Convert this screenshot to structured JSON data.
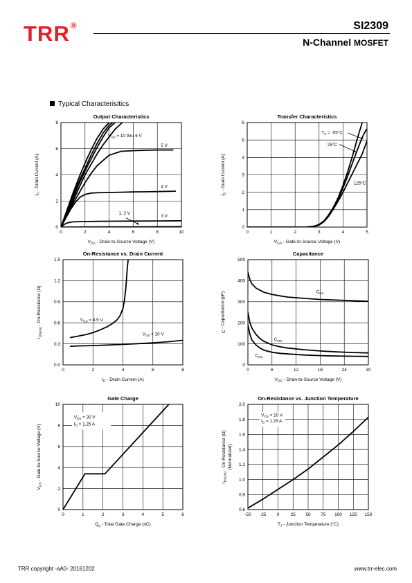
{
  "header": {
    "logo": "TRR",
    "registered": "®",
    "part_number": "SI2309",
    "desc_main": "N-Channel",
    "desc_small": "MOSFET"
  },
  "section_title": "Typical  Characterisitics",
  "footer": {
    "left": "TRR copyright -aA0- 20161202",
    "right": "www.trr-elec.com"
  },
  "chart_data": [
    {
      "id": "output",
      "type": "line",
      "title": "Output Characteristics",
      "xlabel_main": "V",
      "xlabel_sub": "DS",
      "xlabel_rest": " -  Drain-to-Source Voltage (V)",
      "ylabel_main": "I",
      "ylabel_sub": "D",
      "ylabel_rest": " -  Drain Current (A)",
      "xlim": [
        0,
        10
      ],
      "ylim": [
        0,
        8
      ],
      "xticks": [
        0,
        2,
        4,
        6,
        8,
        10
      ],
      "yticks": [
        0,
        2,
        4,
        6,
        8
      ],
      "tick_labels_x": [
        "0",
        "2",
        "4",
        "6",
        "8",
        "10"
      ],
      "tick_labels_y": [
        "0",
        "2",
        "4",
        "6",
        "8"
      ],
      "grid": true,
      "series": [
        {
          "x": [
            0,
            0.5,
            1,
            1.5,
            2,
            2.5,
            3,
            3.5,
            4.0
          ],
          "y": [
            0,
            1.3,
            2.6,
            3.8,
            4.9,
            5.9,
            6.8,
            7.5,
            8.0
          ]
        },
        {
          "x": [
            0,
            0.5,
            1,
            1.5,
            2,
            2.5,
            3,
            3.5,
            4.0,
            4.3
          ],
          "y": [
            0,
            1.2,
            2.4,
            3.5,
            4.5,
            5.5,
            6.4,
            7.2,
            7.8,
            8.0
          ]
        },
        {
          "x": [
            0,
            0.5,
            1,
            1.5,
            2,
            2.5,
            3,
            3.5,
            4.0,
            4.5
          ],
          "y": [
            0,
            1.1,
            2.2,
            3.3,
            4.3,
            5.2,
            6.1,
            6.9,
            7.6,
            8.0
          ]
        },
        {
          "x": [
            0,
            0.5,
            1,
            1.5,
            2,
            2.5,
            3,
            3.5,
            4.0,
            4.5,
            5.1
          ],
          "y": [
            0,
            1.0,
            2.0,
            3.0,
            4.0,
            4.8,
            5.6,
            6.3,
            6.9,
            7.5,
            8.0
          ]
        },
        {
          "x": [
            0,
            0.5,
            1,
            1.5,
            2,
            2.5,
            3,
            4,
            5,
            6,
            7,
            8,
            9.3
          ],
          "y": [
            0,
            0.9,
            1.8,
            2.6,
            3.4,
            4.1,
            4.7,
            5.5,
            5.8,
            5.85,
            5.88,
            5.9,
            5.9
          ]
        },
        {
          "x": [
            0,
            0.4,
            0.8,
            1.2,
            1.6,
            2.0,
            2.5,
            3,
            4,
            5,
            6,
            7,
            8,
            9.5
          ],
          "y": [
            0,
            0.7,
            1.35,
            1.9,
            2.3,
            2.5,
            2.6,
            2.63,
            2.65,
            2.67,
            2.69,
            2.7,
            2.72,
            2.75
          ]
        },
        {
          "x": [
            0,
            0.3,
            0.6,
            1.0,
            1.5,
            2,
            3,
            4,
            6,
            8,
            10
          ],
          "y": [
            0,
            0.22,
            0.34,
            0.4,
            0.42,
            0.43,
            0.44,
            0.45,
            0.46,
            0.47,
            0.48
          ]
        },
        {
          "x": [
            0,
            2,
            4,
            6,
            8,
            10
          ],
          "y": [
            0,
            0.01,
            0.02,
            0.02,
            0.03,
            0.03
          ]
        }
      ],
      "annotations": [
        {
          "x": 3.9,
          "y": 6.9,
          "parts": [
            [
              "V",
              ""
            ],
            [
              "GS",
              "sub"
            ],
            [
              " = 10 thru 6 V",
              ""
            ]
          ]
        },
        {
          "x": 8.3,
          "y": 6.15,
          "parts": [
            [
              "5 V",
              ""
            ]
          ]
        },
        {
          "x": 8.3,
          "y": 3.0,
          "parts": [
            [
              "4 V",
              ""
            ]
          ]
        },
        {
          "x": 4.8,
          "y": 0.95,
          "parts": [
            [
              "1, 2 V",
              ""
            ]
          ]
        },
        {
          "x": 8.3,
          "y": 0.75,
          "parts": [
            [
              "3 V",
              ""
            ]
          ]
        }
      ],
      "arrows": [
        [
          5.4,
          0.7,
          6.5,
          0.2
        ]
      ]
    },
    {
      "id": "transfer",
      "type": "line",
      "title": "Transfer Characteristics",
      "xlabel_main": "V",
      "xlabel_sub": "GS",
      "xlabel_rest": " -  Gate-to-Source Voltage (V)",
      "ylabel_main": "I",
      "ylabel_sub": "D",
      "ylabel_rest": " -  Drain Current (A)",
      "xlim": [
        0,
        5
      ],
      "ylim": [
        0,
        6
      ],
      "xticks": [
        0,
        1,
        2,
        3,
        4,
        5
      ],
      "yticks": [
        0,
        1,
        2,
        3,
        4,
        5,
        6
      ],
      "tick_labels_x": [
        "0",
        "1",
        "2",
        "3",
        "4",
        "5"
      ],
      "tick_labels_y": [
        "0",
        "1",
        "2",
        "3",
        "4",
        "5",
        "6"
      ],
      "grid": true,
      "series": [
        {
          "name": "-55°C",
          "x": [
            0,
            2.4,
            2.8,
            3.0,
            3.2,
            3.4,
            3.6,
            3.8,
            4.0,
            4.2,
            4.4,
            4.6,
            4.8
          ],
          "y": [
            0,
            0,
            0.05,
            0.15,
            0.35,
            0.7,
            1.15,
            1.7,
            2.4,
            3.2,
            4.1,
            5.1,
            6.0
          ]
        },
        {
          "name": "25°C",
          "x": [
            0,
            2.5,
            2.8,
            3.0,
            3.2,
            3.4,
            3.6,
            3.8,
            4.0,
            4.2,
            4.4,
            4.6,
            4.8,
            4.97
          ],
          "y": [
            0,
            0,
            0.04,
            0.12,
            0.3,
            0.62,
            1.05,
            1.6,
            2.25,
            2.95,
            3.7,
            4.45,
            5.15,
            5.6
          ]
        },
        {
          "name": "125°C",
          "x": [
            0,
            2.6,
            2.8,
            3.0,
            3.2,
            3.4,
            3.6,
            3.8,
            4.0,
            4.2,
            4.4,
            4.6,
            4.8,
            5.0
          ],
          "y": [
            0,
            0,
            0.05,
            0.15,
            0.35,
            0.65,
            1.05,
            1.5,
            2.0,
            2.55,
            3.1,
            3.65,
            4.2,
            4.95
          ]
        }
      ],
      "annotations": [
        {
          "x": 3.1,
          "y": 5.35,
          "parts": [
            [
              "T",
              ""
            ],
            [
              "C",
              "sub"
            ],
            [
              " = -55°C",
              ""
            ]
          ]
        },
        {
          "x": 3.35,
          "y": 4.65,
          "parts": [
            [
              "25°C",
              ""
            ]
          ]
        },
        {
          "x": 4.45,
          "y": 2.45,
          "parts": [
            [
              "125°C",
              ""
            ]
          ]
        }
      ],
      "arrows": [
        [
          4.2,
          5.4,
          4.85,
          5.05
        ],
        [
          3.85,
          4.75,
          4.55,
          4.3
        ]
      ]
    },
    {
      "id": "onres",
      "type": "line",
      "title": "On-Resistance vs. Drain Current",
      "xlabel_main": "I",
      "xlabel_sub": "D",
      "xlabel_rest": "  -  Drain Current (A)",
      "ylabel_main": "r",
      "ylabel_sub": "DS(on)",
      "ylabel_rest": "  -  On-Resistance (Ω)",
      "xlim": [
        0,
        8
      ],
      "ylim": [
        0,
        1.5
      ],
      "xticks": [
        0,
        2,
        4,
        6,
        8
      ],
      "yticks": [
        0,
        0.3,
        0.6,
        0.9,
        1.2,
        1.5
      ],
      "tick_labels_x": [
        "0",
        "2",
        "4",
        "6",
        "8"
      ],
      "tick_labels_y": [
        "0.0",
        "0.3",
        "0.6",
        "0.9",
        "1.2",
        "1.5"
      ],
      "grid": true,
      "series": [
        {
          "x": [
            0.5,
            1,
            1.5,
            2,
            2.5,
            3,
            3.3,
            3.6,
            3.8,
            4.0,
            4.1,
            4.2,
            4.25,
            4.3,
            4.35
          ],
          "y": [
            0.39,
            0.41,
            0.43,
            0.46,
            0.5,
            0.55,
            0.59,
            0.64,
            0.7,
            0.8,
            0.92,
            1.1,
            1.25,
            1.4,
            1.5
          ]
        },
        {
          "x": [
            0.5,
            1,
            2,
            3,
            4,
            5,
            6,
            7,
            8
          ],
          "y": [
            0.265,
            0.27,
            0.275,
            0.283,
            0.292,
            0.303,
            0.315,
            0.33,
            0.35
          ]
        }
      ],
      "annotations": [
        {
          "x": 1.15,
          "y": 0.62,
          "parts": [
            [
              "V",
              ""
            ],
            [
              "GS",
              "sub"
            ],
            [
              " = 4.5 V",
              ""
            ]
          ]
        },
        {
          "x": 5.3,
          "y": 0.42,
          "parts": [
            [
              "V",
              ""
            ],
            [
              "GS",
              "sub"
            ],
            [
              " = 10 V",
              ""
            ]
          ]
        }
      ],
      "arrows": []
    },
    {
      "id": "capacitance",
      "type": "line",
      "title": "Capacitance",
      "xlabel_main": "V",
      "xlabel_sub": "DS",
      "xlabel_rest": "  -  Drain-to-Source Voltage (V)",
      "ylabel_main": "C",
      "ylabel_sub": "",
      "ylabel_rest": "  -  Capacitance (pF)",
      "xlim": [
        0,
        30
      ],
      "ylim": [
        0,
        500
      ],
      "xticks": [
        0,
        6,
        12,
        18,
        24,
        30
      ],
      "yticks": [
        0,
        100,
        200,
        300,
        400,
        500
      ],
      "tick_labels_x": [
        "0",
        "6",
        "12",
        "18",
        "24",
        "30"
      ],
      "tick_labels_y": [
        "0",
        "100",
        "200",
        "300",
        "400",
        "500"
      ],
      "grid": true,
      "series": [
        {
          "name": "Ciss",
          "x": [
            0,
            0.5,
            1,
            2,
            3,
            4,
            6,
            8,
            10,
            14,
            18,
            22,
            26,
            30
          ],
          "y": [
            440,
            405,
            385,
            365,
            355,
            345,
            335,
            328,
            322,
            316,
            311,
            308,
            305,
            302
          ]
        },
        {
          "name": "Coss",
          "x": [
            0,
            0.5,
            1,
            2,
            3,
            4,
            6,
            8,
            10,
            14,
            18,
            22,
            26,
            30
          ],
          "y": [
            250,
            200,
            175,
            145,
            125,
            112,
            95,
            86,
            80,
            72,
            66,
            62,
            59,
            57
          ]
        },
        {
          "name": "Crss",
          "x": [
            0,
            0.5,
            1,
            2,
            3,
            4,
            6,
            8,
            10,
            14,
            18,
            22,
            26,
            30
          ],
          "y": [
            190,
            145,
            118,
            95,
            80,
            70,
            60,
            55,
            52,
            47,
            44,
            42,
            41,
            40
          ]
        }
      ],
      "annotations": [
        {
          "x": 17.0,
          "y": 340,
          "parts": [
            [
              "C",
              ""
            ],
            [
              "iss",
              "sub"
            ]
          ]
        },
        {
          "x": 6.5,
          "y": 115,
          "parts": [
            [
              "C",
              ""
            ],
            [
              "oss",
              "sub"
            ]
          ]
        },
        {
          "x": 1.8,
          "y": 38,
          "parts": [
            [
              "C",
              ""
            ],
            [
              "rss",
              "sub"
            ]
          ]
        }
      ],
      "arrows": []
    },
    {
      "id": "gatecharge",
      "type": "line",
      "title": "Gate Charge",
      "xlabel_main": "Q",
      "xlabel_sub": "g",
      "xlabel_rest": "  -  Total Gate Charge (nC)",
      "ylabel_main": "V",
      "ylabel_sub": "GS",
      "ylabel_rest": "  -  Gate-to-Source Voltage (V)",
      "xlim": [
        0,
        6
      ],
      "ylim": [
        0,
        10
      ],
      "xticks": [
        0,
        1,
        2,
        3,
        4,
        5,
        6
      ],
      "yticks": [
        0,
        2,
        4,
        6,
        8,
        10
      ],
      "tick_labels_x": [
        "0",
        "1",
        "2",
        "3",
        "4",
        "5",
        "6"
      ],
      "tick_labels_y": [
        "0",
        "2",
        "4",
        "6",
        "8",
        "10"
      ],
      "grid": true,
      "series": [
        {
          "x": [
            0,
            1.1,
            2.1,
            5.3
          ],
          "y": [
            0,
            3.4,
            3.4,
            10
          ]
        }
      ],
      "annotations": [
        {
          "x": 0.55,
          "y": 8.65,
          "parts": [
            [
              "V",
              ""
            ],
            [
              "DS",
              "sub"
            ],
            [
              " = 30 V",
              ""
            ]
          ]
        },
        {
          "x": 0.55,
          "y": 8.0,
          "parts": [
            [
              "I",
              ""
            ],
            [
              "D",
              "sub"
            ],
            [
              " = 1.25   A",
              ""
            ]
          ]
        }
      ],
      "legend_box": [
        0.45,
        9.25,
        2.4,
        7.6
      ],
      "arrows": []
    },
    {
      "id": "onres_temp",
      "type": "line",
      "title": "On-Resistance vs. Junction Temperature",
      "xlabel_main": "T",
      "xlabel_sub": "J",
      "xlabel_rest": " - Junction Temperature (°C)",
      "ylabel_main": "r",
      "ylabel_sub": "DS(on)",
      "ylabel_rest": "  -  On-Resistance (Ω)",
      "ylabel_line2": "(Normalized)",
      "xlim": [
        -50,
        150
      ],
      "ylim": [
        0.6,
        2.0
      ],
      "xticks": [
        -50,
        -25,
        0,
        25,
        50,
        75,
        100,
        125,
        150
      ],
      "yticks": [
        0.6,
        0.8,
        1.0,
        1.2,
        1.4,
        1.6,
        1.8,
        2.0
      ],
      "tick_labels_x": [
        "-50",
        "-25",
        "0",
        "25",
        "50",
        "75",
        "100",
        "125",
        "150"
      ],
      "tick_labels_y": [
        "0.6",
        "0.8",
        "1.0",
        "1.2",
        "1.4",
        "1.6",
        "1.8",
        "2.0"
      ],
      "grid": true,
      "series": [
        {
          "x": [
            -50,
            -25,
            0,
            25,
            50,
            75,
            100,
            125,
            150
          ],
          "y": [
            0.62,
            0.74,
            0.87,
            1.0,
            1.14,
            1.3,
            1.46,
            1.64,
            1.83
          ]
        }
      ],
      "annotations": [
        {
          "x": -28,
          "y": 1.84,
          "parts": [
            [
              "V",
              ""
            ],
            [
              "GS",
              "sub"
            ],
            [
              " = 10 V",
              ""
            ]
          ]
        },
        {
          "x": -28,
          "y": 1.76,
          "parts": [
            [
              "I",
              ""
            ],
            [
              "D",
              "sub"
            ],
            [
              " = 1.25   A",
              ""
            ]
          ]
        }
      ],
      "legend_box": [
        -31,
        1.9,
        12,
        1.7
      ],
      "arrows": []
    }
  ]
}
